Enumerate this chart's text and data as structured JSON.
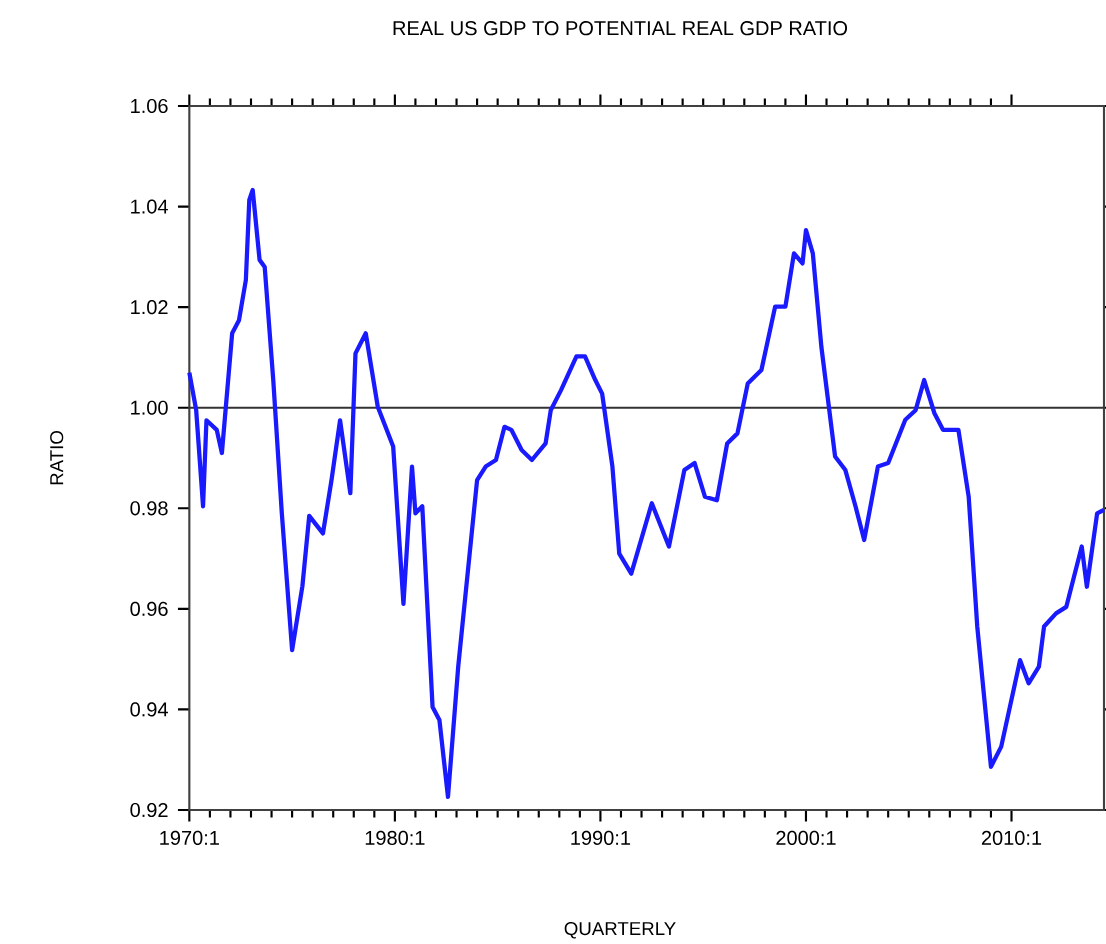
{
  "chart_data": {
    "type": "line",
    "title": "REAL US GDP TO POTENTIAL REAL GDP RATIO",
    "xlabel": "QUARTERLY",
    "ylabel": "RATIO",
    "x": [
      "1970-01",
      "1970-05",
      "1970-09",
      "1970-11",
      "1971-05",
      "1971-08",
      "1972-02",
      "1972-06",
      "1972-10",
      "1972-12",
      "1973-02",
      "1973-06",
      "1973-09",
      "1974-02",
      "1974-07",
      "1975-01",
      "1975-07",
      "1975-11",
      "1976-07",
      "1976-12",
      "1977-05",
      "1977-11",
      "1978-02",
      "1978-08",
      "1979-03",
      "1979-12",
      "1980-06",
      "1980-11",
      "1981-01",
      "1981-05",
      "1981-11",
      "1982-03",
      "1982-08",
      "1983-02",
      "1984-01",
      "1984-06",
      "1984-12",
      "1985-05",
      "1985-09",
      "1986-03",
      "1986-09",
      "1987-05",
      "1987-08",
      "1988-02",
      "1988-11",
      "1989-04",
      "1989-10",
      "1990-02",
      "1990-08",
      "1990-12",
      "1991-07",
      "1992-07",
      "1993-05",
      "1994-02",
      "1994-08",
      "1995-02",
      "1995-09",
      "1996-03",
      "1996-09",
      "1997-03",
      "1997-11",
      "1998-07",
      "1999-01",
      "1999-06",
      "1999-11",
      "2000-01",
      "2000-05",
      "2000-10",
      "2001-06",
      "2001-12",
      "2002-06",
      "2002-11",
      "2003-07",
      "2004-01",
      "2004-11",
      "2005-05",
      "2005-10",
      "2006-04",
      "2006-09",
      "2007-06",
      "2007-12",
      "2008-05",
      "2009-01",
      "2009-07",
      "2010-06",
      "2010-11",
      "2011-05",
      "2011-08",
      "2012-03",
      "2012-09",
      "2013-06",
      "2013-09",
      "2014-03",
      "2014-07"
    ],
    "series": [
      {
        "color": "#1a1aff",
        "values": [
          1.007,
          0.9995,
          0.9804,
          0.9975,
          0.9956,
          0.991,
          1.0148,
          1.0174,
          1.0254,
          1.0413,
          1.0433,
          1.0294,
          1.028,
          1.0055,
          0.979,
          0.9518,
          0.9645,
          0.9785,
          0.975,
          0.9856,
          0.9975,
          0.983,
          1.0108,
          1.0148,
          1.0002,
          0.9923,
          0.961,
          0.9883,
          0.979,
          0.9804,
          0.9405,
          0.9379,
          0.9226,
          0.9486,
          0.9856,
          0.9883,
          0.9896,
          0.9962,
          0.9956,
          0.9916,
          0.9896,
          0.9929,
          0.9995,
          1.0035,
          1.0102,
          1.0102,
          1.0055,
          1.0028,
          0.9883,
          0.971,
          0.967,
          0.981,
          0.9724,
          0.9876,
          0.989,
          0.9823,
          0.9816,
          0.9929,
          0.9949,
          1.0048,
          1.0075,
          1.0201,
          1.0201,
          1.0307,
          1.0287,
          1.0353,
          1.0307,
          1.0121,
          0.9903,
          0.9876,
          0.9803,
          0.9737,
          0.9883,
          0.989,
          0.9976,
          0.9995,
          1.0055,
          0.9989,
          0.9956,
          0.9956,
          0.9823,
          0.9565,
          0.9286,
          0.9326,
          0.9498,
          0.9452,
          0.9485,
          0.9565,
          0.9591,
          0.9604,
          0.9724,
          0.9644,
          0.979,
          0.9797
        ]
      }
    ],
    "xlim": [
      "1970-01",
      "2014-07"
    ],
    "ylim": [
      0.92,
      1.06
    ],
    "xticks": [
      {
        "value": "1970-01",
        "label": "1970:1"
      },
      {
        "value": "1980-01",
        "label": "1980:1"
      },
      {
        "value": "1990-01",
        "label": "1990:1"
      },
      {
        "value": "2000-01",
        "label": "2000:1"
      },
      {
        "value": "2010-01",
        "label": "2010:1"
      }
    ],
    "yticks": [
      {
        "value": 0.92,
        "label": "0.92"
      },
      {
        "value": 0.94,
        "label": "0.94"
      },
      {
        "value": 0.96,
        "label": "0.96"
      },
      {
        "value": 0.98,
        "label": "0.98"
      },
      {
        "value": 1.0,
        "label": "1.00"
      },
      {
        "value": 1.02,
        "label": "1.02"
      },
      {
        "value": 1.04,
        "label": "1.04"
      },
      {
        "value": 1.06,
        "label": "1.06"
      }
    ],
    "ref_lines": [
      {
        "axis": "y",
        "value": 1.0,
        "color": "#333333"
      }
    ],
    "grid": false,
    "marker": "none",
    "line_style": "solid"
  }
}
